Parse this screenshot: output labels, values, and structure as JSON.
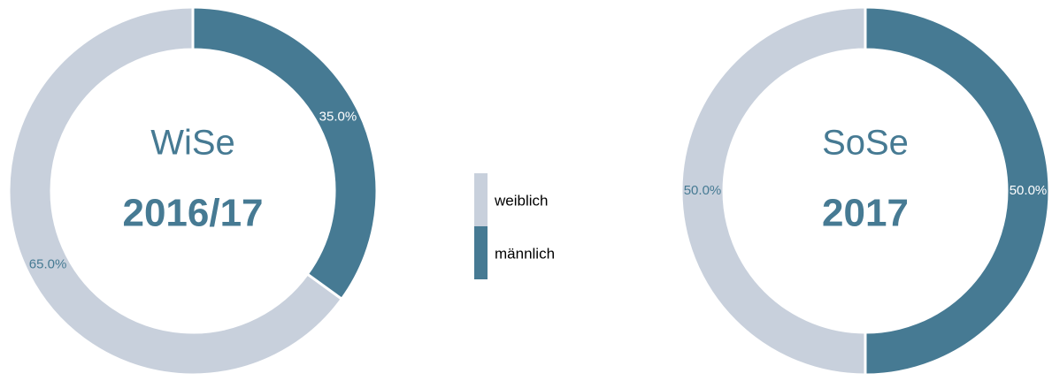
{
  "chart_data": [
    {
      "type": "pie",
      "title": "WiSe",
      "subtitle": "2016/17",
      "categories": [
        "weiblich",
        "männlich"
      ],
      "values": [
        65,
        35
      ],
      "value_labels": [
        "65.0%",
        "35.0%"
      ],
      "colors": [
        "#c8d0dc",
        "#467a93"
      ],
      "legend": "center"
    },
    {
      "type": "pie",
      "title": "SoSe",
      "subtitle": "2017",
      "categories": [
        "weiblich",
        "männlich"
      ],
      "values": [
        50,
        50
      ],
      "value_labels": [
        "50.0%",
        "50.0%"
      ],
      "colors": [
        "#c8d0dc",
        "#467a93"
      ]
    }
  ]
}
